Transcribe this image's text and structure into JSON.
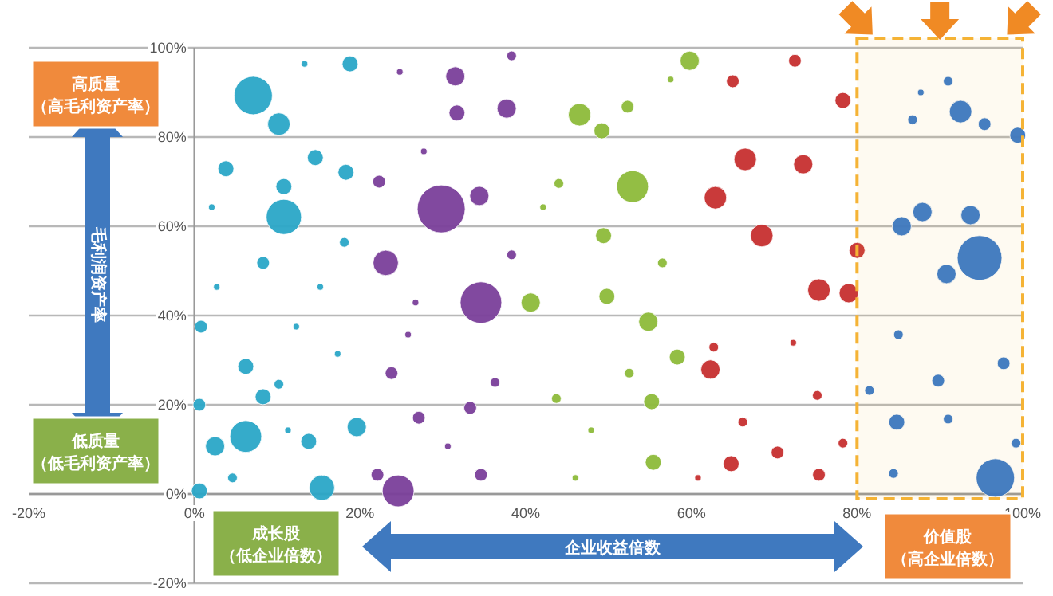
{
  "chart_data": {
    "type": "bubble",
    "xlabel": "企业收益倍数",
    "ylabel": "毛利润资产率",
    "annotations": [
      "高质量",
      "（高毛利资产率）",
      "低质量",
      "（低毛利资产率）",
      "成长股",
      "（低企业倍数）",
      "价值股",
      "（高企业倍数）"
    ],
    "xlim": [
      -20,
      100
    ],
    "ylim": [
      -20,
      100
    ],
    "xticks": [
      {
        "value": -20,
        "label": "-20%"
      },
      {
        "value": 0,
        "label": "0%"
      },
      {
        "value": 20,
        "label": "20%"
      },
      {
        "value": 40,
        "label": "40%"
      },
      {
        "value": 60,
        "label": "60%"
      },
      {
        "value": 80,
        "label": "80%"
      },
      {
        "value": 100,
        "label": "100%"
      }
    ],
    "yticks": [
      {
        "value": -20,
        "label": "-20%"
      },
      {
        "value": 0,
        "label": "0%"
      },
      {
        "value": 20,
        "label": "20%"
      },
      {
        "value": 40,
        "label": "40%"
      },
      {
        "value": 60,
        "label": "60%"
      },
      {
        "value": 80,
        "label": "80%"
      },
      {
        "value": 100,
        "label": "100%"
      }
    ],
    "grid": "y",
    "bands": [
      {
        "axis": "x",
        "from": 80,
        "to": 100,
        "color": "#f5b335"
      }
    ],
    "series": [
      {
        "color": "#2aa7c7",
        "x": [
          7.1,
          10.8,
          10.2,
          18.8,
          3.8,
          14.6,
          18.3,
          8.3,
          6.2,
          2.5,
          15.4,
          0.6,
          0.6,
          0.8,
          6.2,
          8.3,
          19.6,
          13.8,
          10.2,
          10.8,
          2.1,
          12.3,
          15.2,
          18.1,
          4.6,
          2.7,
          13.3,
          17.3,
          11.3
        ],
        "values": [
          89.3,
          62.1,
          82.9,
          96.4,
          72.9,
          75.4,
          72.1,
          51.8,
          12.9,
          10.7,
          1.4,
          0.7,
          20,
          37.5,
          28.6,
          21.8,
          15,
          11.8,
          24.6,
          68.9,
          64.3,
          37.5,
          46.4,
          56.4,
          3.6,
          46.4,
          96.4,
          31.4,
          14.3
        ],
        "sizes": [
          0.64,
          0.54,
          0.22,
          0.11,
          0.11,
          0.11,
          0.11,
          0.07,
          0.44,
          0.16,
          0.28,
          0.11,
          0.07,
          0.07,
          0.11,
          0.11,
          0.16,
          0.11,
          0.04,
          0.11,
          0.018,
          0.018,
          0.018,
          0.04,
          0.04,
          0.018,
          0.018,
          0.018,
          0.018
        ]
      },
      {
        "color": "#7a3f9a",
        "x": [
          29.8,
          34.6,
          24.6,
          23.1,
          31.5,
          31.7,
          37.7,
          34.4,
          22.3,
          23.8,
          27.1,
          33.3,
          34.6,
          22.1,
          27.7,
          25.8,
          30.6,
          36.3,
          38.3,
          24.8,
          26.7,
          38.3
        ],
        "values": [
          63.9,
          42.9,
          0.7,
          51.8,
          93.6,
          85.4,
          86.4,
          66.8,
          70,
          27.1,
          17.1,
          19.3,
          4.3,
          4.3,
          76.8,
          35.7,
          10.7,
          25,
          98.2,
          94.6,
          42.9,
          53.6
        ],
        "sizes": [
          1,
          0.75,
          0.44,
          0.28,
          0.16,
          0.11,
          0.16,
          0.16,
          0.07,
          0.07,
          0.07,
          0.07,
          0.07,
          0.07,
          0.018,
          0.018,
          0.018,
          0.04,
          0.04,
          0.018,
          0.018,
          0.04
        ]
      },
      {
        "color": "#8dba3a",
        "x": [
          59.8,
          46.5,
          52.9,
          49.2,
          52.3,
          40.6,
          49.8,
          49.4,
          54.8,
          55.2,
          58.3,
          55.4,
          43.7,
          47.9,
          52.5,
          46,
          56.5,
          44,
          57.5,
          42.1
        ],
        "values": [
          97.1,
          85,
          68.9,
          81.4,
          86.8,
          42.9,
          44.3,
          57.9,
          38.6,
          20.7,
          30.7,
          7.1,
          21.4,
          14.3,
          27.1,
          3.6,
          51.8,
          69.6,
          92.9,
          64.3
        ],
        "sizes": [
          0.16,
          0.22,
          0.44,
          0.11,
          0.07,
          0.16,
          0.11,
          0.11,
          0.16,
          0.11,
          0.11,
          0.11,
          0.04,
          0.018,
          0.04,
          0.018,
          0.04,
          0.04,
          0.018,
          0.018
        ]
      },
      {
        "color": "#c62f2f",
        "x": [
          66.5,
          62.9,
          68.5,
          73.5,
          75.4,
          79,
          78.3,
          65,
          72.5,
          80,
          62.3,
          64.8,
          70.4,
          75.4,
          62.7,
          66.2,
          75.2,
          78.3,
          60.8,
          72.3
        ],
        "values": [
          75,
          66.4,
          57.9,
          73.9,
          45.7,
          45,
          88.2,
          92.5,
          97.1,
          54.6,
          27.9,
          6.8,
          9.3,
          4.3,
          32.9,
          16.1,
          22.1,
          11.4,
          3.6,
          33.9
        ],
        "sizes": [
          0.22,
          0.22,
          0.22,
          0.16,
          0.22,
          0.16,
          0.11,
          0.07,
          0.07,
          0.11,
          0.16,
          0.11,
          0.07,
          0.07,
          0.04,
          0.04,
          0.04,
          0.04,
          0.018,
          0.018
        ]
      },
      {
        "color": "#2f73c8",
        "x": [
          94.8,
          96.7,
          92.5,
          85.4,
          87.9,
          93.7,
          90.8,
          99.4,
          95.4,
          91,
          84.8,
          89.8,
          97.7,
          81.5,
          85,
          91,
          84.4,
          99.2,
          87.7,
          86.7
        ],
        "values": [
          52.9,
          3.6,
          85.7,
          60,
          63.2,
          62.5,
          49.3,
          80.4,
          82.9,
          92.5,
          16.1,
          25.4,
          29.3,
          23.2,
          35.7,
          16.8,
          4.6,
          11.4,
          90,
          83.9
        ],
        "sizes": [
          0.87,
          0.64,
          0.22,
          0.16,
          0.16,
          0.16,
          0.16,
          0.11,
          0.07,
          0.04,
          0.11,
          0.07,
          0.07,
          0.04,
          0.04,
          0.04,
          0.04,
          0.04,
          0.018,
          0.04
        ]
      }
    ]
  }
}
